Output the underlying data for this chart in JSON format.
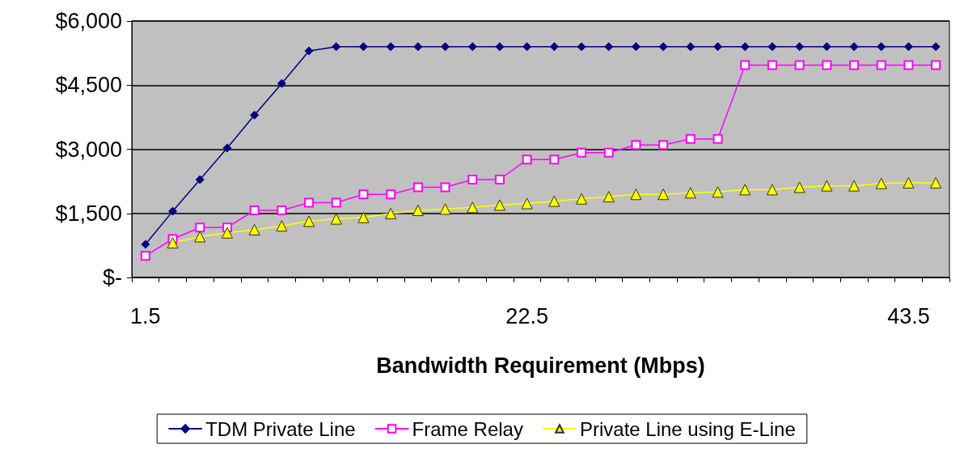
{
  "chart_data": {
    "type": "line",
    "xlabel": "Bandwidth Requirement (Mbps)",
    "categories": [
      "1.5",
      null,
      null,
      null,
      null,
      null,
      null,
      null,
      null,
      null,
      null,
      null,
      null,
      null,
      "22.5",
      null,
      null,
      null,
      null,
      null,
      null,
      null,
      null,
      null,
      null,
      null,
      null,
      null,
      "43.5",
      null
    ],
    "series": [
      {
        "name": "TDM Private Line",
        "color": "#000080",
        "marker": "diamond",
        "values": [
          775,
          1550,
          2290,
          3030,
          3800,
          4540,
          5300,
          5400,
          5400,
          5400,
          5400,
          5400,
          5400,
          5400,
          5400,
          5400,
          5400,
          5400,
          5400,
          5400,
          5400,
          5400,
          5400,
          5400,
          5400,
          5400,
          5400,
          5400,
          5400,
          5400
        ]
      },
      {
        "name": "Frame Relay",
        "color": "#ff00ff",
        "marker": "square",
        "values": [
          505,
          900,
          1170,
          1170,
          1570,
          1570,
          1750,
          1750,
          1945,
          1945,
          2110,
          2110,
          2290,
          2290,
          2760,
          2760,
          2920,
          2920,
          3100,
          3100,
          3240,
          3240,
          4970,
          4970,
          4970,
          4970,
          4970,
          4970,
          4970,
          4970
        ]
      },
      {
        "name": "Private Line using E-Line",
        "color": "#ffff00",
        "marker": "triangle",
        "values": [
          null,
          810,
          955,
          1045,
          1117,
          1207,
          1315,
          1370,
          1405,
          1495,
          1570,
          1600,
          1640,
          1695,
          1730,
          1785,
          1840,
          1890,
          1945,
          1945,
          1980,
          2000,
          2055,
          2055,
          2110,
          2145,
          2145,
          2200,
          2215,
          2215
        ]
      }
    ],
    "ylim": [
      0,
      6000
    ],
    "yticks": [
      {
        "value": 0,
        "label": "$-"
      },
      {
        "value": 1500,
        "label": "$1,500"
      },
      {
        "value": 3000,
        "label": "$3,000"
      },
      {
        "value": 4500,
        "label": "$4,500"
      },
      {
        "value": 6000,
        "label": "$6,000"
      }
    ],
    "grid": "y",
    "legend": "bottom",
    "line_style": "solid"
  }
}
